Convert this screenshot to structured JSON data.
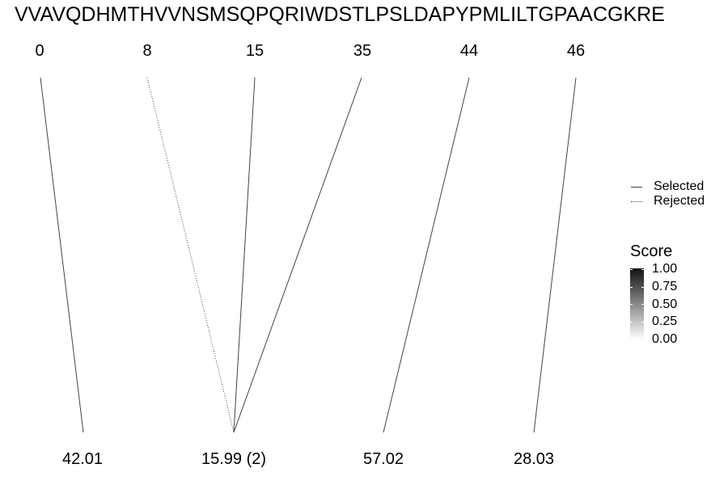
{
  "sequence": "VVAVQDHMTHVVNSMSQPQRIWDSTLPSLDAPYPMLILTGPAACGKRE",
  "positions": [
    "0",
    "8",
    "15",
    "35",
    "44",
    "46"
  ],
  "masses": [
    "42.01",
    "15.99 (2)",
    "57.02",
    "28.03"
  ],
  "links": [
    {
      "position": "0",
      "mass": "42.01",
      "status": "Selected",
      "score": 1.0
    },
    {
      "position": "8",
      "mass": "15.99 (2)",
      "status": "Rejected",
      "score": 1.0
    },
    {
      "position": "15",
      "mass": "15.99 (2)",
      "status": "Selected",
      "score": 1.0
    },
    {
      "position": "35",
      "mass": "15.99 (2)",
      "status": "Selected",
      "score": 1.0
    },
    {
      "position": "44",
      "mass": "57.02",
      "status": "Selected",
      "score": 1.0
    },
    {
      "position": "46",
      "mass": "28.03",
      "status": "Selected",
      "score": 1.0
    }
  ],
  "legend": {
    "selected_label": "Selected",
    "rejected_label": "Rejected",
    "score_title": "Score",
    "score_ticks": [
      "1.00",
      "0.75",
      "0.50",
      "0.25",
      "0.00"
    ]
  },
  "colors": {
    "line": "#444444",
    "score_high": "#111111",
    "score_low": "#ffffff"
  }
}
